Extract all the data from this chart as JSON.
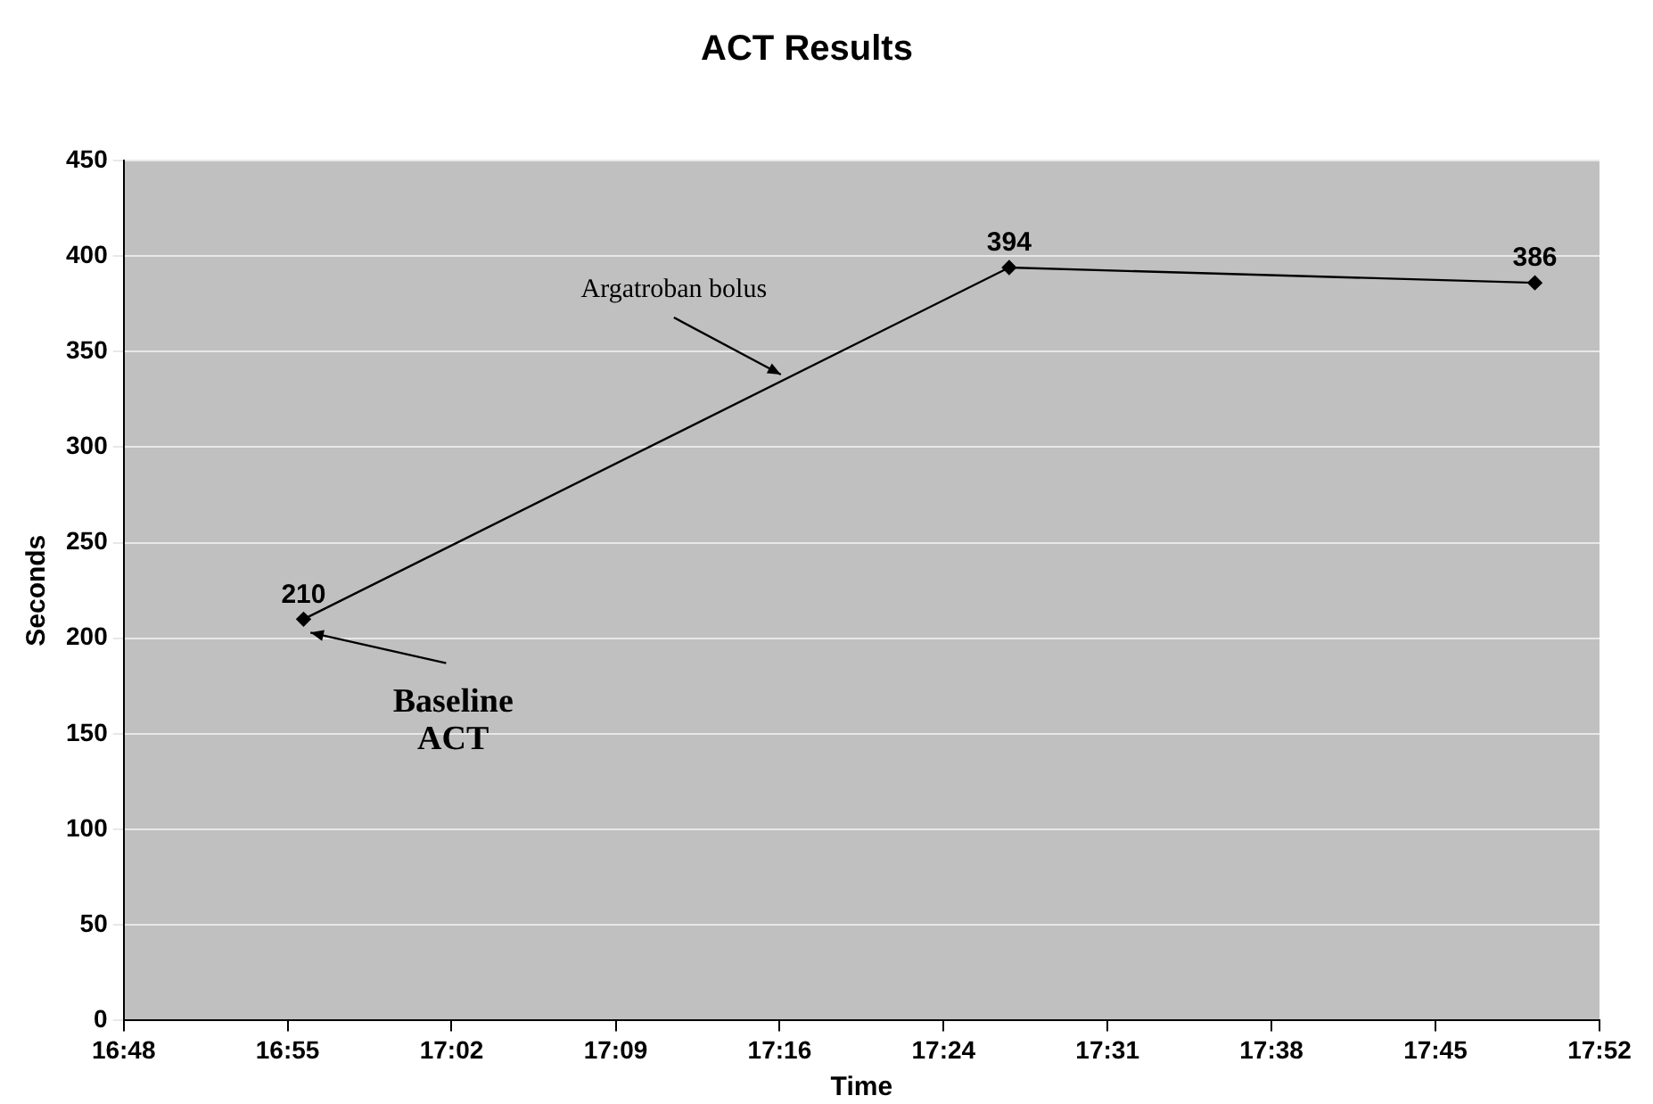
{
  "chart_data": {
    "type": "line",
    "title": "ACT Results",
    "xlabel": "Time",
    "ylabel": "Seconds",
    "x": [
      16.93,
      17.44,
      17.82
    ],
    "series": [
      {
        "color": "#000000",
        "values": [
          210,
          394,
          386
        ]
      }
    ],
    "data_labels": true,
    "marker": "diamond",
    "line_style": "solid",
    "grid": "y",
    "legend": false,
    "xlim": [
      16.8,
      17.8667
    ],
    "xticks": [
      {
        "value": 16.8,
        "label": "16:48"
      },
      {
        "value": 16.9185,
        "label": "16:55"
      },
      {
        "value": 17.037,
        "label": "17:02"
      },
      {
        "value": 17.1556,
        "label": "17:09"
      },
      {
        "value": 17.2741,
        "label": "17:16"
      },
      {
        "value": 17.3926,
        "label": "17:24"
      },
      {
        "value": 17.5111,
        "label": "17:31"
      },
      {
        "value": 17.6296,
        "label": "17:38"
      },
      {
        "value": 17.7481,
        "label": "17:45"
      },
      {
        "value": 17.8667,
        "label": "17:52"
      }
    ],
    "ylim": [
      0,
      450
    ],
    "yticks": [
      0,
      50,
      100,
      150,
      200,
      250,
      300,
      350,
      400,
      450
    ],
    "annotations": [
      {
        "text": "Argatroban bolus",
        "x": 17.275,
        "y": 338
      },
      {
        "text": "Baseline\nACT",
        "x": 16.935,
        "y": 203
      }
    ]
  }
}
